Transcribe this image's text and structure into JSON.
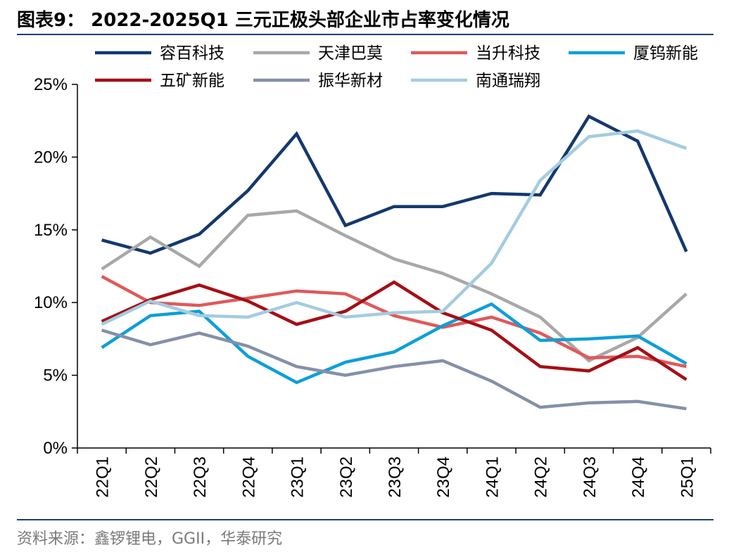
{
  "title": "图表9： 2022-2025Q1 三元正极头部企业市占率变化情况",
  "source": "资料来源：鑫锣锂电，GGII，华泰研究",
  "chart_data": {
    "type": "line",
    "title": "图表9： 2022-2025Q1 三元正极头部企业市占率变化情况",
    "xlabel": "",
    "ylabel": "",
    "ylim": [
      0,
      25
    ],
    "yticks": [
      0,
      5,
      10,
      15,
      20,
      25
    ],
    "ytick_labels": [
      "0%",
      "5%",
      "10%",
      "15%",
      "20%",
      "25%"
    ],
    "grid": false,
    "legend_position": "top",
    "categories": [
      "22Q1",
      "22Q2",
      "22Q3",
      "22Q4",
      "23Q1",
      "23Q2",
      "23Q3",
      "23Q4",
      "24Q1",
      "24Q2",
      "24Q3",
      "24Q4",
      "25Q1"
    ],
    "series": [
      {
        "name": "容百科技",
        "color": "#14386e",
        "values": [
          14.3,
          13.4,
          14.7,
          17.7,
          21.6,
          15.3,
          16.6,
          16.6,
          17.5,
          17.4,
          22.8,
          21.1,
          13.5
        ]
      },
      {
        "name": "天津巴莫",
        "color": "#a8a8a8",
        "values": [
          12.3,
          14.5,
          12.5,
          16.0,
          16.3,
          14.6,
          13.0,
          12.0,
          10.6,
          9.0,
          6.0,
          7.6,
          10.6
        ]
      },
      {
        "name": "当升科技",
        "color": "#e0595b",
        "values": [
          11.8,
          10.0,
          9.8,
          10.3,
          10.8,
          10.6,
          9.1,
          8.3,
          9.0,
          7.9,
          6.2,
          6.3,
          5.6
        ]
      },
      {
        "name": "厦钨新能",
        "color": "#0d9fd8",
        "values": [
          6.9,
          9.1,
          9.4,
          6.3,
          4.5,
          5.9,
          6.6,
          8.4,
          9.9,
          7.4,
          7.5,
          7.7,
          5.8
        ]
      },
      {
        "name": "五矿新能",
        "color": "#a50f15",
        "values": [
          8.7,
          10.2,
          11.2,
          10.1,
          8.5,
          9.4,
          11.4,
          9.3,
          8.1,
          5.6,
          5.3,
          6.9,
          4.7
        ]
      },
      {
        "name": "振华新材",
        "color": "#8590a8",
        "values": [
          8.1,
          7.1,
          7.9,
          7.0,
          5.6,
          5.0,
          5.6,
          6.0,
          4.6,
          2.8,
          3.1,
          3.2,
          2.7
        ]
      },
      {
        "name": "南通瑞翔",
        "color": "#a3cce0",
        "values": [
          8.5,
          10.1,
          9.1,
          9.0,
          10.0,
          9.0,
          9.3,
          9.4,
          12.7,
          18.4,
          21.4,
          21.8,
          20.6
        ]
      }
    ]
  }
}
